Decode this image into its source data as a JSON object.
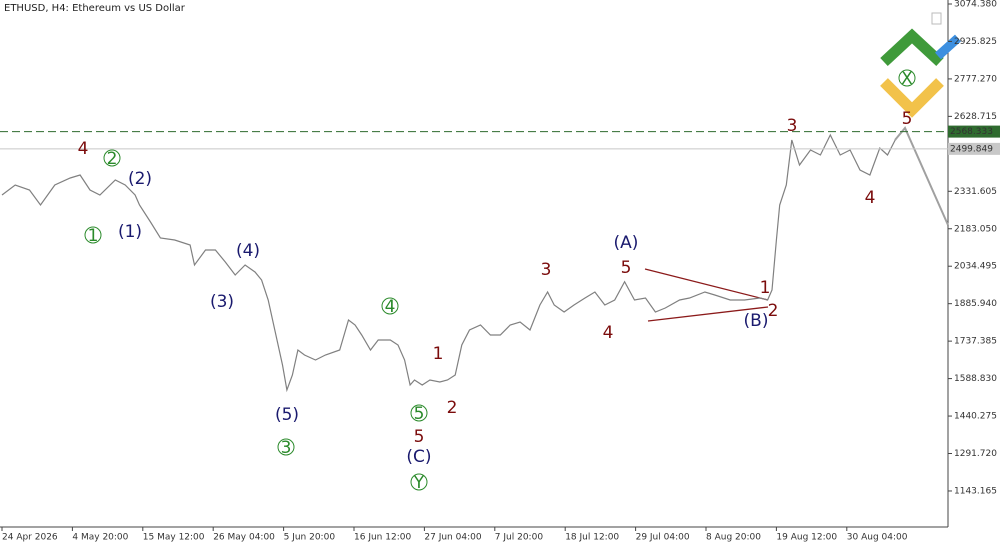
{
  "chart_data": {
    "type": "line",
    "title": "ETHUSD, H4:  Ethereum vs US Dollar",
    "x": [
      0,
      12,
      25,
      35,
      48,
      62,
      71,
      80,
      89,
      103,
      112,
      121,
      125,
      135,
      144,
      157,
      171,
      175,
      185,
      194,
      203,
      212,
      221,
      230,
      236,
      242,
      248,
      255,
      259,
      264,
      269,
      275,
      285,
      294,
      307,
      315,
      321,
      327,
      335,
      342,
      353,
      360,
      366,
      371,
      375,
      382,
      389,
      398,
      405,
      412,
      418,
      425,
      435,
      444,
      453,
      462,
      471,
      480,
      489,
      496,
      502,
      511,
      520,
      530,
      539,
      548,
      557,
      566,
      575,
      585,
      594,
      603,
      616,
      625,
      639,
      648,
      662,
      675,
      689,
      696,
      700,
      704,
      707,
      713,
      718,
      725,
      735,
      744,
      753,
      762,
      771,
      780,
      789,
      794,
      798,
      805,
      812
    ],
    "series": [
      {
        "name": "ETHUSD",
        "color": "#808080",
        "values": [
          2316.9,
          2356.6,
          2336.8,
          2277.3,
          2356.6,
          2384.4,
          2396.2,
          2336.8,
          2316.9,
          2376.4,
          2356.6,
          2316.9,
          2277.3,
          2209.9,
          2146.4,
          2138.5,
          2118.6,
          2039.3,
          2098.8,
          2098.8,
          2051.2,
          1999.7,
          2039.3,
          2011.6,
          1979.8,
          1900.5,
          1781.6,
          1642.8,
          1543.6,
          1603.1,
          1702.2,
          1682.4,
          1662.6,
          1682.4,
          1702.2,
          1821.2,
          1801.4,
          1761.7,
          1702.2,
          1741.9,
          1741.9,
          1722.1,
          1662.6,
          1563.5,
          1583.3,
          1563.5,
          1583.3,
          1575.3,
          1583.3,
          1603.1,
          1722.1,
          1781.6,
          1801.4,
          1761.7,
          1761.7,
          1801.4,
          1813.3,
          1781.6,
          1880.7,
          1932.3,
          1880.7,
          1852.9,
          1880.7,
          1908.5,
          1932.3,
          1880.7,
          1900.5,
          1972.9,
          1900.5,
          1908.5,
          1852.9,
          1868.8,
          1900.5,
          1908.5,
          1932.3,
          1920.4,
          1900.5,
          1900.5,
          1908.5,
          1900.5,
          1940.2,
          2138.5,
          2277.3,
          2356.6,
          2535.0,
          2435.9,
          2495.4,
          2475.6,
          2554.9,
          2475.6,
          2495.4,
          2416.1,
          2396.2,
          2455.7,
          2503.3,
          2475.6,
          2535.0
        ]
      }
    ],
    "xlim": [
      0,
      860
    ],
    "xticks": [
      {
        "value": 0,
        "label": "24 Apr 2026"
      },
      {
        "value": 64,
        "label": "4 May 20:00"
      },
      {
        "value": 128,
        "label": "15 May 12:00"
      },
      {
        "value": 192,
        "label": "26 May 04:00"
      },
      {
        "value": 256,
        "label": "5 Jun 20:00"
      },
      {
        "value": 320,
        "label": "16 Jun 12:00"
      },
      {
        "value": 384,
        "label": "27 Jun 04:00"
      },
      {
        "value": 448,
        "label": "7 Jul 20:00"
      },
      {
        "value": 512,
        "label": "18 Jul 12:00"
      },
      {
        "value": 576,
        "label": "29 Jul 04:00"
      },
      {
        "value": 640,
        "label": "8 Aug 20:00"
      },
      {
        "value": 704,
        "label": "19 Aug 12:00"
      },
      {
        "value": 768,
        "label": "30 Aug 04:00"
      }
    ],
    "ylim": [
      1000.3,
      3090.2
    ],
    "yticks": [
      {
        "value": 3074.38,
        "label": "3074.380"
      },
      {
        "value": 2925.825,
        "label": "2925.825"
      },
      {
        "value": 2777.27,
        "label": "2777.270"
      },
      {
        "value": 2628.715,
        "label": "2628.715"
      },
      2331.605,
      {
        "value": 2183.05,
        "label": "2183.050"
      },
      2034.495,
      {
        "value": 1885.94,
        "label": "1885.940"
      },
      1737.385,
      {
        "value": 1588.83,
        "label": "1588.830"
      },
      1440.275,
      {
        "value": 1291.72,
        "label": "1291.720"
      },
      1143.165
    ],
    "hlines": [
      {
        "value": 2568.333,
        "color": "#2f6b2f",
        "style": "dashed"
      },
      {
        "value": 2499.849,
        "color": "#c8c8c8",
        "style": "solid"
      }
    ],
    "annotations": [
      {
        "text": "4",
        "color": "#7b0c0c"
      },
      {
        "text": "2",
        "color": "#2a8a2a",
        "circled": true
      },
      {
        "text": "(2)",
        "color": "#1a1a6e"
      },
      {
        "text": "1",
        "color": "#2a8a2a",
        "circled": true
      },
      {
        "text": "(1)",
        "color": "#1a1a6e"
      },
      {
        "text": "(4)",
        "color": "#1a1a6e"
      },
      {
        "text": "(3)",
        "color": "#1a1a6e"
      },
      {
        "text": "(5)",
        "color": "#1a1a6e"
      },
      {
        "text": "3",
        "color": "#2a8a2a",
        "circled": true
      },
      {
        "text": "4",
        "color": "#2a8a2a",
        "circled": true
      },
      {
        "text": "1",
        "color": "#7b0c0c"
      },
      {
        "text": "2",
        "color": "#7b0c0c"
      },
      {
        "text": "5",
        "color": "#2a8a2a",
        "circled": true
      },
      {
        "text": "5",
        "color": "#7b0c0c"
      },
      {
        "text": "(C)",
        "color": "#1a1a6e"
      },
      {
        "text": "Y",
        "color": "#2a8a2a",
        "circled": true
      },
      {
        "text": "3",
        "color": "#7b0c0c"
      },
      {
        "text": "(A)",
        "color": "#1a1a6e"
      },
      {
        "text": "5",
        "color": "#7b0c0c"
      },
      {
        "text": "4",
        "color": "#7b0c0c"
      },
      {
        "text": "1",
        "color": "#7b0c0c"
      },
      {
        "text": "2",
        "color": "#7b0c0c"
      },
      {
        "text": "(B)",
        "color": "#1a1a6e"
      },
      {
        "text": "3",
        "color": "#7b0c0c"
      },
      {
        "text": "4",
        "color": "#7b0c0c"
      },
      {
        "text": "5",
        "color": "#7b0c0c"
      },
      {
        "text": "X",
        "color": "#2a8a2a",
        "circled": true
      }
    ]
  }
}
